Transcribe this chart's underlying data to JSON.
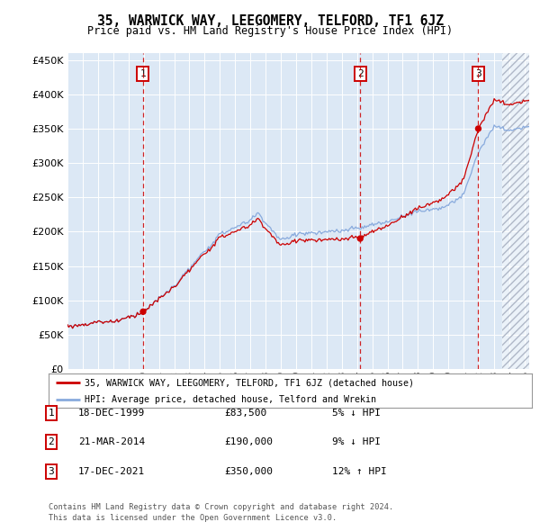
{
  "title": "35, WARWICK WAY, LEEGOMERY, TELFORD, TF1 6JZ",
  "subtitle": "Price paid vs. HM Land Registry's House Price Index (HPI)",
  "sale_info": [
    {
      "label": "1",
      "date": "18-DEC-1999",
      "price": "£83,500",
      "hpi": "5% ↓ HPI"
    },
    {
      "label": "2",
      "date": "21-MAR-2014",
      "price": "£190,000",
      "hpi": "9% ↓ HPI"
    },
    {
      "label": "3",
      "date": "17-DEC-2021",
      "price": "£350,000",
      "hpi": "12% ↑ HPI"
    }
  ],
  "sale_year_vals": [
    1999.96,
    2014.21,
    2021.96
  ],
  "sale_prices": [
    83500,
    190000,
    350000
  ],
  "legend_line1": "35, WARWICK WAY, LEEGOMERY, TELFORD, TF1 6JZ (detached house)",
  "legend_line2": "HPI: Average price, detached house, Telford and Wrekin",
  "footnote1": "Contains HM Land Registry data © Crown copyright and database right 2024.",
  "footnote2": "This data is licensed under the Open Government Licence v3.0.",
  "price_line_color": "#cc0000",
  "hpi_line_color": "#88aadd",
  "background_color": "#dce8f5",
  "ylim": [
    0,
    460000
  ],
  "yticks": [
    0,
    50000,
    100000,
    150000,
    200000,
    250000,
    300000,
    350000,
    400000,
    450000
  ],
  "xlim_start": 1995.0,
  "xlim_end": 2025.3,
  "hatch_start": 2023.5
}
